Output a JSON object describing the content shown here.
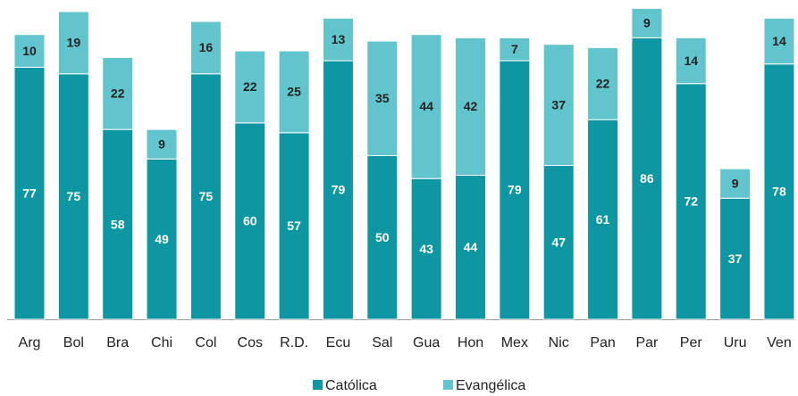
{
  "chart_data": {
    "type": "stacked_bar",
    "categories": [
      "Arg",
      "Bol",
      "Bra",
      "Chi",
      "Col",
      "Cos",
      "R.D.",
      "Ecu",
      "Sal",
      "Gua",
      "Hon",
      "Mex",
      "Nic",
      "Pan",
      "Par",
      "Per",
      "Uru",
      "Ven"
    ],
    "series": [
      {
        "name": "Católica",
        "color": "#0e97a3",
        "values": [
          77,
          75,
          58,
          49,
          75,
          60,
          57,
          79,
          50,
          43,
          44,
          79,
          47,
          61,
          86,
          72,
          37,
          78
        ]
      },
      {
        "name": "Evangélica",
        "color": "#62c5cd",
        "values": [
          10,
          19,
          22,
          9,
          16,
          22,
          25,
          13,
          35,
          44,
          42,
          7,
          37,
          22,
          9,
          14,
          9,
          14
        ]
      }
    ],
    "legend": "bottom"
  }
}
